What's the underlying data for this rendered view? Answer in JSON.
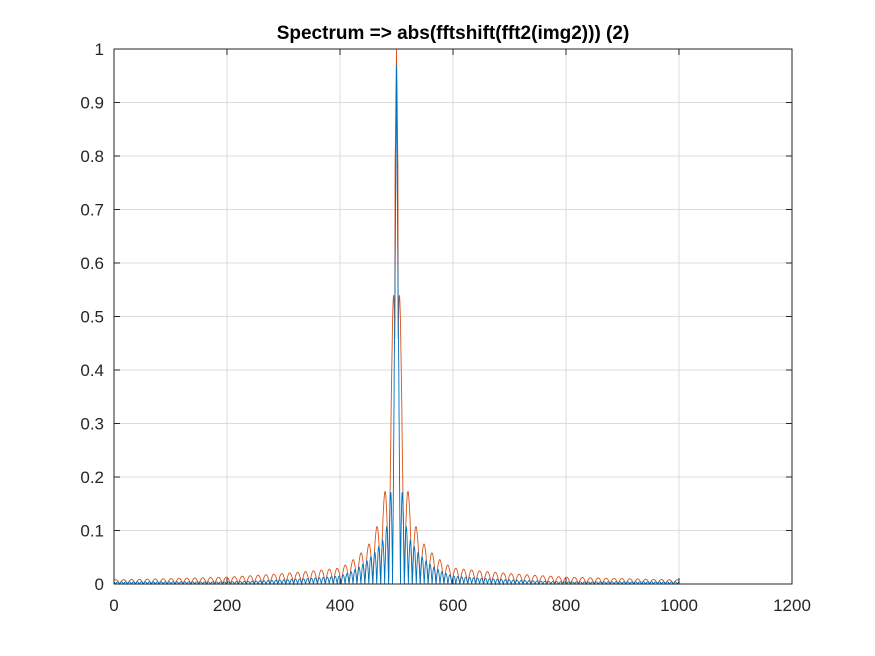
{
  "chart_data": {
    "type": "line",
    "title": "Spectrum => abs(fftshift(fft2(img2))) (2)",
    "xlabel": "",
    "ylabel": "",
    "xlim": [
      0,
      1200
    ],
    "ylim": [
      0,
      1
    ],
    "xticks": [
      0,
      200,
      400,
      600,
      800,
      1000,
      1200
    ],
    "xtick_labels": [
      "0",
      "200",
      "400",
      "600",
      "800",
      "1000",
      "1200"
    ],
    "yticks": [
      0,
      0.1,
      0.2,
      0.3,
      0.4,
      0.5,
      0.6,
      0.7,
      0.8,
      0.9,
      1
    ],
    "ytick_labels": [
      "0",
      "0.1",
      "0.2",
      "0.3",
      "0.4",
      "0.5",
      "0.6",
      "0.7",
      "0.8",
      "0.9",
      "1"
    ],
    "grid": true,
    "legend": "none",
    "series": [
      {
        "color": "#D95319",
        "x_range": [
          1,
          1000
        ],
        "peak": {
          "x": 500,
          "y": 1.0
        },
        "sidelobe_peaks": [
          {
            "x": 485,
            "y": 0.215
          },
          {
            "x": 515,
            "y": 0.215
          },
          {
            "x": 472,
            "y": 0.13
          },
          {
            "x": 528,
            "y": 0.13
          },
          {
            "x": 455,
            "y": 0.08
          },
          {
            "x": 545,
            "y": 0.08
          },
          {
            "x": 400,
            "y": 0.03
          },
          {
            "x": 600,
            "y": 0.03
          },
          {
            "x": 200,
            "y": 0.013
          },
          {
            "x": 800,
            "y": 0.013
          },
          {
            "x": 10,
            "y": 0.008
          },
          {
            "x": 990,
            "y": 0.008
          }
        ]
      },
      {
        "color": "#0072BD",
        "x_range": [
          1,
          1000
        ],
        "peak": {
          "x": 500,
          "y": 0.97
        },
        "sidelobe_peaks": [
          {
            "x": 493,
            "y": 0.215
          },
          {
            "x": 507,
            "y": 0.215
          },
          {
            "x": 480,
            "y": 0.09
          },
          {
            "x": 520,
            "y": 0.09
          },
          {
            "x": 400,
            "y": 0.015
          },
          {
            "x": 600,
            "y": 0.015
          },
          {
            "x": 200,
            "y": 0.004
          },
          {
            "x": 800,
            "y": 0.004
          }
        ]
      }
    ]
  }
}
